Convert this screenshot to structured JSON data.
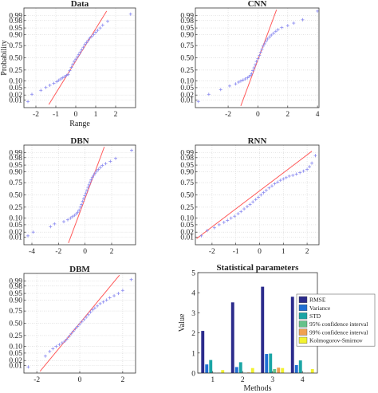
{
  "colors": {
    "fit_line": "#ff5b5b",
    "data_points": "#8a8af0",
    "grid": "#d9d9d9",
    "bar_colors": [
      "#2b2b8c",
      "#1f6fd4",
      "#1aa5a5",
      "#66c28a",
      "#f0a050",
      "#f2f230"
    ]
  },
  "chart_data": [
    {
      "type": "scatter",
      "title": "Data",
      "xlabel": "Range",
      "ylabel": "Probability",
      "xlim": [
        -2.6,
        3.0
      ],
      "xticks": [
        "-2",
        "-1",
        "0",
        "1",
        "2"
      ],
      "xtick_values": [
        -2,
        -1,
        0,
        1,
        2
      ],
      "yscale": "normal-probability",
      "yticks": [
        "0.01",
        "0.02",
        "0.05",
        "0.10",
        "0.25",
        "0.50",
        "0.75",
        "0.90",
        "0.95",
        "0.98",
        "0.99"
      ],
      "ytick_values": [
        0.01,
        0.02,
        0.05,
        0.1,
        0.25,
        0.5,
        0.75,
        0.9,
        0.95,
        0.98,
        0.99
      ],
      "grid": true,
      "fit_line": {
        "x": [
          -1.35,
          1.55
        ],
        "p": [
          0.005,
          0.995
        ]
      },
      "points": {
        "x": [
          -2.4,
          -2.2,
          -1.75,
          -1.5,
          -1.3,
          -1.1,
          -0.95,
          -0.85,
          -0.75,
          -0.65,
          -0.55,
          -0.47,
          -0.38,
          -0.3,
          -0.22,
          -0.15,
          -0.08,
          0.0,
          0.08,
          0.15,
          0.22,
          0.3,
          0.38,
          0.46,
          0.54,
          0.62,
          0.7,
          0.8,
          0.9,
          1.0,
          1.1,
          1.22,
          1.35,
          1.6,
          2.75
        ],
        "p": [
          0.0079,
          0.0221,
          0.0364,
          0.0507,
          0.065,
          0.0793,
          0.0936,
          0.1079,
          0.1221,
          0.1364,
          0.1507,
          0.165,
          0.18,
          0.24,
          0.3,
          0.36,
          0.42,
          0.47,
          0.52,
          0.57,
          0.62,
          0.67,
          0.72,
          0.77,
          0.8,
          0.83,
          0.86,
          0.88,
          0.9,
          0.92,
          0.935,
          0.95,
          0.964,
          0.978,
          0.992
        ]
      }
    },
    {
      "type": "scatter",
      "title": "CNN",
      "xlabel": "",
      "ylabel": "",
      "xlim": [
        -4.2,
        4.1
      ],
      "xticks": [
        "-2",
        "0",
        "2",
        "4"
      ],
      "xtick_values": [
        -2,
        0,
        2,
        4
      ],
      "yscale": "normal-probability",
      "yticks": [
        "0.01",
        "0.02",
        "0.05",
        "0.10",
        "0.25",
        "0.50",
        "0.75",
        "0.90",
        "0.95",
        "0.98",
        "0.99"
      ],
      "ytick_values": [
        0.01,
        0.02,
        0.05,
        0.1,
        0.25,
        0.5,
        0.75,
        0.9,
        0.95,
        0.98,
        0.99
      ],
      "grid": true,
      "fit_line": {
        "x": [
          -1.15,
          1.25
        ],
        "p": [
          0.004,
          0.996
        ]
      },
      "points": {
        "x": [
          -4.0,
          -3.3,
          -2.5,
          -1.9,
          -1.5,
          -1.3,
          -1.15,
          -1.0,
          -0.85,
          -0.7,
          -0.6,
          -0.5,
          -0.42,
          -0.34,
          -0.26,
          -0.18,
          -0.1,
          0.0,
          0.1,
          0.18,
          0.27,
          0.35,
          0.45,
          0.55,
          0.65,
          0.78,
          0.9,
          1.05,
          1.2,
          1.35,
          1.6,
          2.0,
          2.4,
          3.0,
          4.0
        ],
        "p": [
          0.008,
          0.022,
          0.04,
          0.06,
          0.075,
          0.09,
          0.1,
          0.11,
          0.122,
          0.135,
          0.15,
          0.165,
          0.19,
          0.24,
          0.29,
          0.35,
          0.42,
          0.48,
          0.55,
          0.62,
          0.68,
          0.74,
          0.78,
          0.82,
          0.85,
          0.875,
          0.895,
          0.912,
          0.928,
          0.94,
          0.952,
          0.962,
          0.972,
          0.982,
          0.995
        ]
      }
    },
    {
      "type": "scatter",
      "title": "DBN",
      "xlabel": "",
      "ylabel": "",
      "xlim": [
        -4.6,
        3.8
      ],
      "xticks": [
        "-4",
        "-2",
        "0",
        "2"
      ],
      "xtick_values": [
        -4,
        -2,
        0,
        2
      ],
      "yscale": "normal-probability",
      "yticks": [
        "0.01",
        "0.02",
        "0.05",
        "0.10",
        "0.25",
        "0.50",
        "0.75",
        "0.90",
        "0.95",
        "0.98",
        "0.99"
      ],
      "ytick_values": [
        0.01,
        0.02,
        0.05,
        0.1,
        0.25,
        0.5,
        0.75,
        0.9,
        0.95,
        0.98,
        0.99
      ],
      "grid": true,
      "fit_line": {
        "x": [
          -1.25,
          1.45
        ],
        "p": [
          0.004,
          0.996
        ]
      },
      "points": {
        "x": [
          -4.3,
          -3.9,
          -2.6,
          -2.3,
          -1.6,
          -1.3,
          -1.1,
          -0.95,
          -0.8,
          -0.65,
          -0.55,
          -0.45,
          -0.35,
          -0.27,
          -0.18,
          -0.1,
          -0.02,
          0.06,
          0.14,
          0.22,
          0.3,
          0.38,
          0.46,
          0.55,
          0.65,
          0.75,
          0.88,
          1.0,
          1.15,
          1.3,
          1.55,
          1.9,
          2.3,
          3.5
        ],
        "p": [
          0.012,
          0.02,
          0.04,
          0.055,
          0.07,
          0.085,
          0.1,
          0.115,
          0.13,
          0.15,
          0.17,
          0.2,
          0.25,
          0.3,
          0.36,
          0.42,
          0.48,
          0.54,
          0.6,
          0.66,
          0.71,
          0.76,
          0.8,
          0.835,
          0.86,
          0.885,
          0.905,
          0.92,
          0.935,
          0.948,
          0.958,
          0.968,
          0.978,
          0.993
        ]
      }
    },
    {
      "type": "scatter",
      "title": "RNN",
      "xlabel": "",
      "ylabel": "",
      "xlim": [
        -2.7,
        2.5
      ],
      "xticks": [
        "-2",
        "-1",
        "0",
        "1",
        "2"
      ],
      "xtick_values": [
        -2,
        -1,
        0,
        1,
        2
      ],
      "yscale": "normal-probability",
      "yticks": [
        "0.01",
        "0.02",
        "0.05",
        "0.10",
        "0.25",
        "0.50",
        "0.75",
        "0.90",
        "0.95",
        "0.98",
        "0.99"
      ],
      "ytick_values": [
        0.01,
        0.02,
        0.05,
        0.1,
        0.25,
        0.5,
        0.75,
        0.9,
        0.95,
        0.98,
        0.99
      ],
      "grid": true,
      "fit_line": {
        "x": [
          -2.65,
          2.2
        ],
        "p": [
          0.008,
          0.992
        ]
      },
      "points": {
        "x": [
          -2.45,
          -2.2,
          -1.9,
          -1.7,
          -1.5,
          -1.35,
          -1.2,
          -1.05,
          -0.9,
          -0.78,
          -0.65,
          -0.52,
          -0.4,
          -0.28,
          -0.16,
          -0.05,
          0.06,
          0.17,
          0.28,
          0.4,
          0.52,
          0.64,
          0.76,
          0.88,
          1.0,
          1.12,
          1.25,
          1.4,
          1.55,
          1.7,
          1.85,
          2.0,
          2.1,
          2.2,
          2.35
        ],
        "p": [
          0.012,
          0.025,
          0.035,
          0.05,
          0.065,
          0.08,
          0.1,
          0.12,
          0.15,
          0.18,
          0.22,
          0.26,
          0.3,
          0.35,
          0.4,
          0.45,
          0.5,
          0.55,
          0.6,
          0.65,
          0.69,
          0.73,
          0.76,
          0.79,
          0.81,
          0.83,
          0.85,
          0.86,
          0.875,
          0.89,
          0.905,
          0.92,
          0.94,
          0.96,
          0.985
        ]
      }
    },
    {
      "type": "scatter",
      "title": "DBM",
      "xlabel": "",
      "ylabel": "",
      "xlim": [
        -2.6,
        2.6
      ],
      "xticks": [
        "-2",
        "0",
        "2"
      ],
      "xtick_values": [
        -2,
        0,
        2
      ],
      "yscale": "normal-probability",
      "yticks": [
        "0.01",
        "0.02",
        "0.05",
        "0.10",
        "0.25",
        "0.50",
        "0.75",
        "0.90",
        "0.95",
        "0.98",
        "0.99"
      ],
      "ytick_values": [
        0.01,
        0.02,
        0.05,
        0.1,
        0.25,
        0.5,
        0.75,
        0.9,
        0.95,
        0.98,
        0.99
      ],
      "grid": true,
      "fit_line": {
        "x": [
          -1.85,
          1.85
        ],
        "p": [
          0.004,
          0.996
        ]
      },
      "points": {
        "x": [
          -2.4,
          -1.6,
          -1.4,
          -1.25,
          -1.1,
          -0.95,
          -0.82,
          -0.7,
          -0.6,
          -0.5,
          -0.4,
          -0.3,
          -0.2,
          -0.1,
          0.0,
          0.1,
          0.2,
          0.3,
          0.4,
          0.5,
          0.6,
          0.7,
          0.82,
          0.95,
          1.1,
          1.25,
          1.4,
          1.6,
          1.8,
          2.0,
          2.4
        ],
        "p": [
          0.008,
          0.035,
          0.06,
          0.08,
          0.1,
          0.12,
          0.14,
          0.16,
          0.19,
          0.23,
          0.28,
          0.33,
          0.38,
          0.43,
          0.48,
          0.53,
          0.58,
          0.63,
          0.68,
          0.73,
          0.77,
          0.8,
          0.83,
          0.86,
          0.88,
          0.9,
          0.92,
          0.935,
          0.95,
          0.965,
          0.992
        ]
      }
    },
    {
      "type": "bar",
      "title": "Statistical parameters",
      "xlabel": "Methods",
      "ylabel": "Value",
      "categories": [
        "1",
        "2",
        "3",
        "4"
      ],
      "ylim": [
        0,
        5
      ],
      "yticks": [
        "0",
        "1",
        "2",
        "3",
        "4",
        "5"
      ],
      "ytick_values": [
        0,
        1,
        2,
        3,
        4,
        5
      ],
      "grid": false,
      "legend_position": "right",
      "series": [
        {
          "name": "RMSE",
          "values": [
            2.1,
            3.52,
            4.3,
            3.8
          ]
        },
        {
          "name": "Variance",
          "values": [
            0.43,
            0.3,
            0.95,
            0.4
          ]
        },
        {
          "name": "STD",
          "values": [
            0.65,
            0.54,
            0.97,
            0.63
          ]
        },
        {
          "name": "95% confidence interval",
          "values": [
            0.02,
            0.02,
            0.2,
            0.02
          ]
        },
        {
          "name": "99% confidence interval",
          "values": [
            0.02,
            0.03,
            0.27,
            0.02
          ]
        },
        {
          "name": "Kolmogorov-Smirnov",
          "values": [
            0.15,
            0.25,
            0.25,
            0.2
          ]
        }
      ]
    }
  ]
}
